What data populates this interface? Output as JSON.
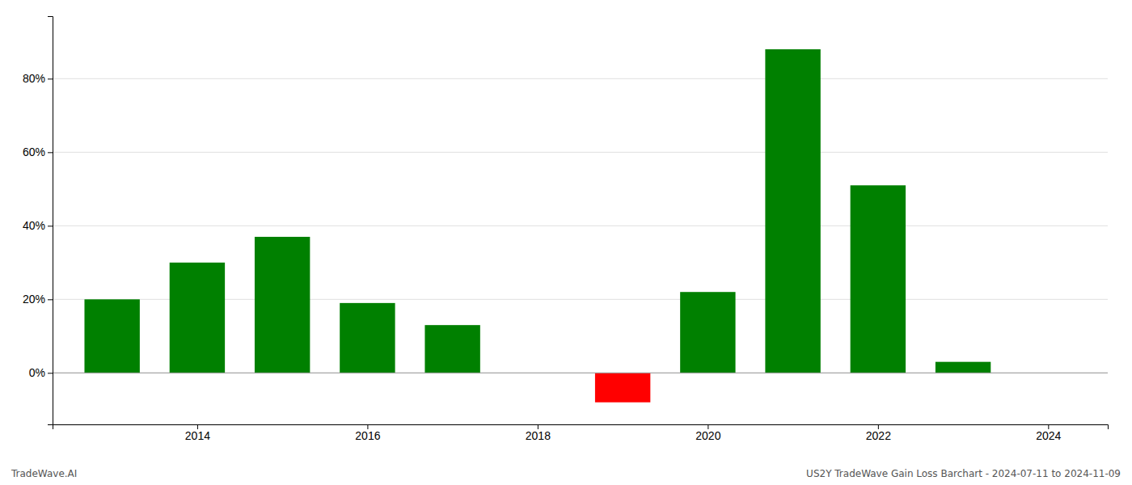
{
  "chart_data": {
    "type": "bar",
    "x": [
      2013,
      2014,
      2015,
      2016,
      2017,
      2019,
      2020,
      2021,
      2022,
      2023
    ],
    "values": [
      0.2,
      0.3,
      0.37,
      0.19,
      0.13,
      -0.08,
      0.22,
      0.88,
      0.51,
      0.03
    ],
    "colors": [
      "#008000",
      "#008000",
      "#008000",
      "#008000",
      "#008000",
      "#ff0000",
      "#008000",
      "#008000",
      "#008000",
      "#008000"
    ],
    "xlim": [
      2012.3,
      2024.7
    ],
    "ylim": [
      -0.14,
      0.97
    ],
    "xticks": [
      2014,
      2016,
      2018,
      2020,
      2022,
      2024
    ],
    "yticks": [
      {
        "value": 0.0,
        "label": "0%"
      },
      {
        "value": 0.2,
        "label": "20%"
      },
      {
        "value": 0.4,
        "label": "40%"
      },
      {
        "value": 0.6,
        "label": "60%"
      },
      {
        "value": 0.8,
        "label": "80%"
      }
    ],
    "grid": true,
    "annotations": [
      "TradeWave.AI",
      "US2Y TradeWave Gain Loss Barchart - 2024-07-11 to 2024-11-09"
    ]
  }
}
